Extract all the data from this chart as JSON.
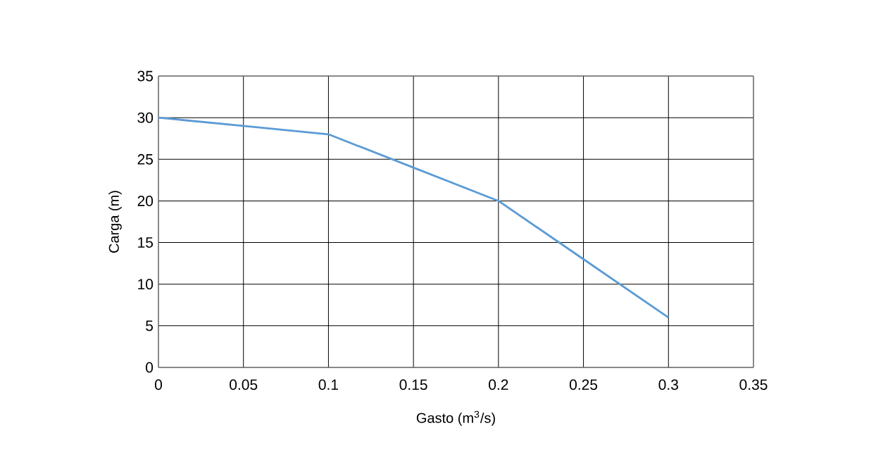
{
  "chart_data": {
    "type": "line",
    "xlabel": "Gasto (m$^{3}$/s)",
    "ylabel": "Carga (m)",
    "x": [
      0,
      0.05,
      0.1,
      0.15,
      0.2,
      0.25,
      0.3
    ],
    "series": [
      {
        "color": "#5b9bd5",
        "values": [
          30,
          29,
          28,
          24,
          20,
          13,
          6
        ]
      }
    ],
    "xlim": [
      0,
      0.35
    ],
    "ylim": [
      0,
      35
    ],
    "xticks": [
      0,
      0.05,
      0.1,
      0.15,
      0.2,
      0.25,
      0.3,
      0.35
    ],
    "yticks": [
      0,
      5,
      10,
      15,
      20,
      25,
      30,
      35
    ],
    "grid": true,
    "marker": "none",
    "line_style": "solid"
  }
}
